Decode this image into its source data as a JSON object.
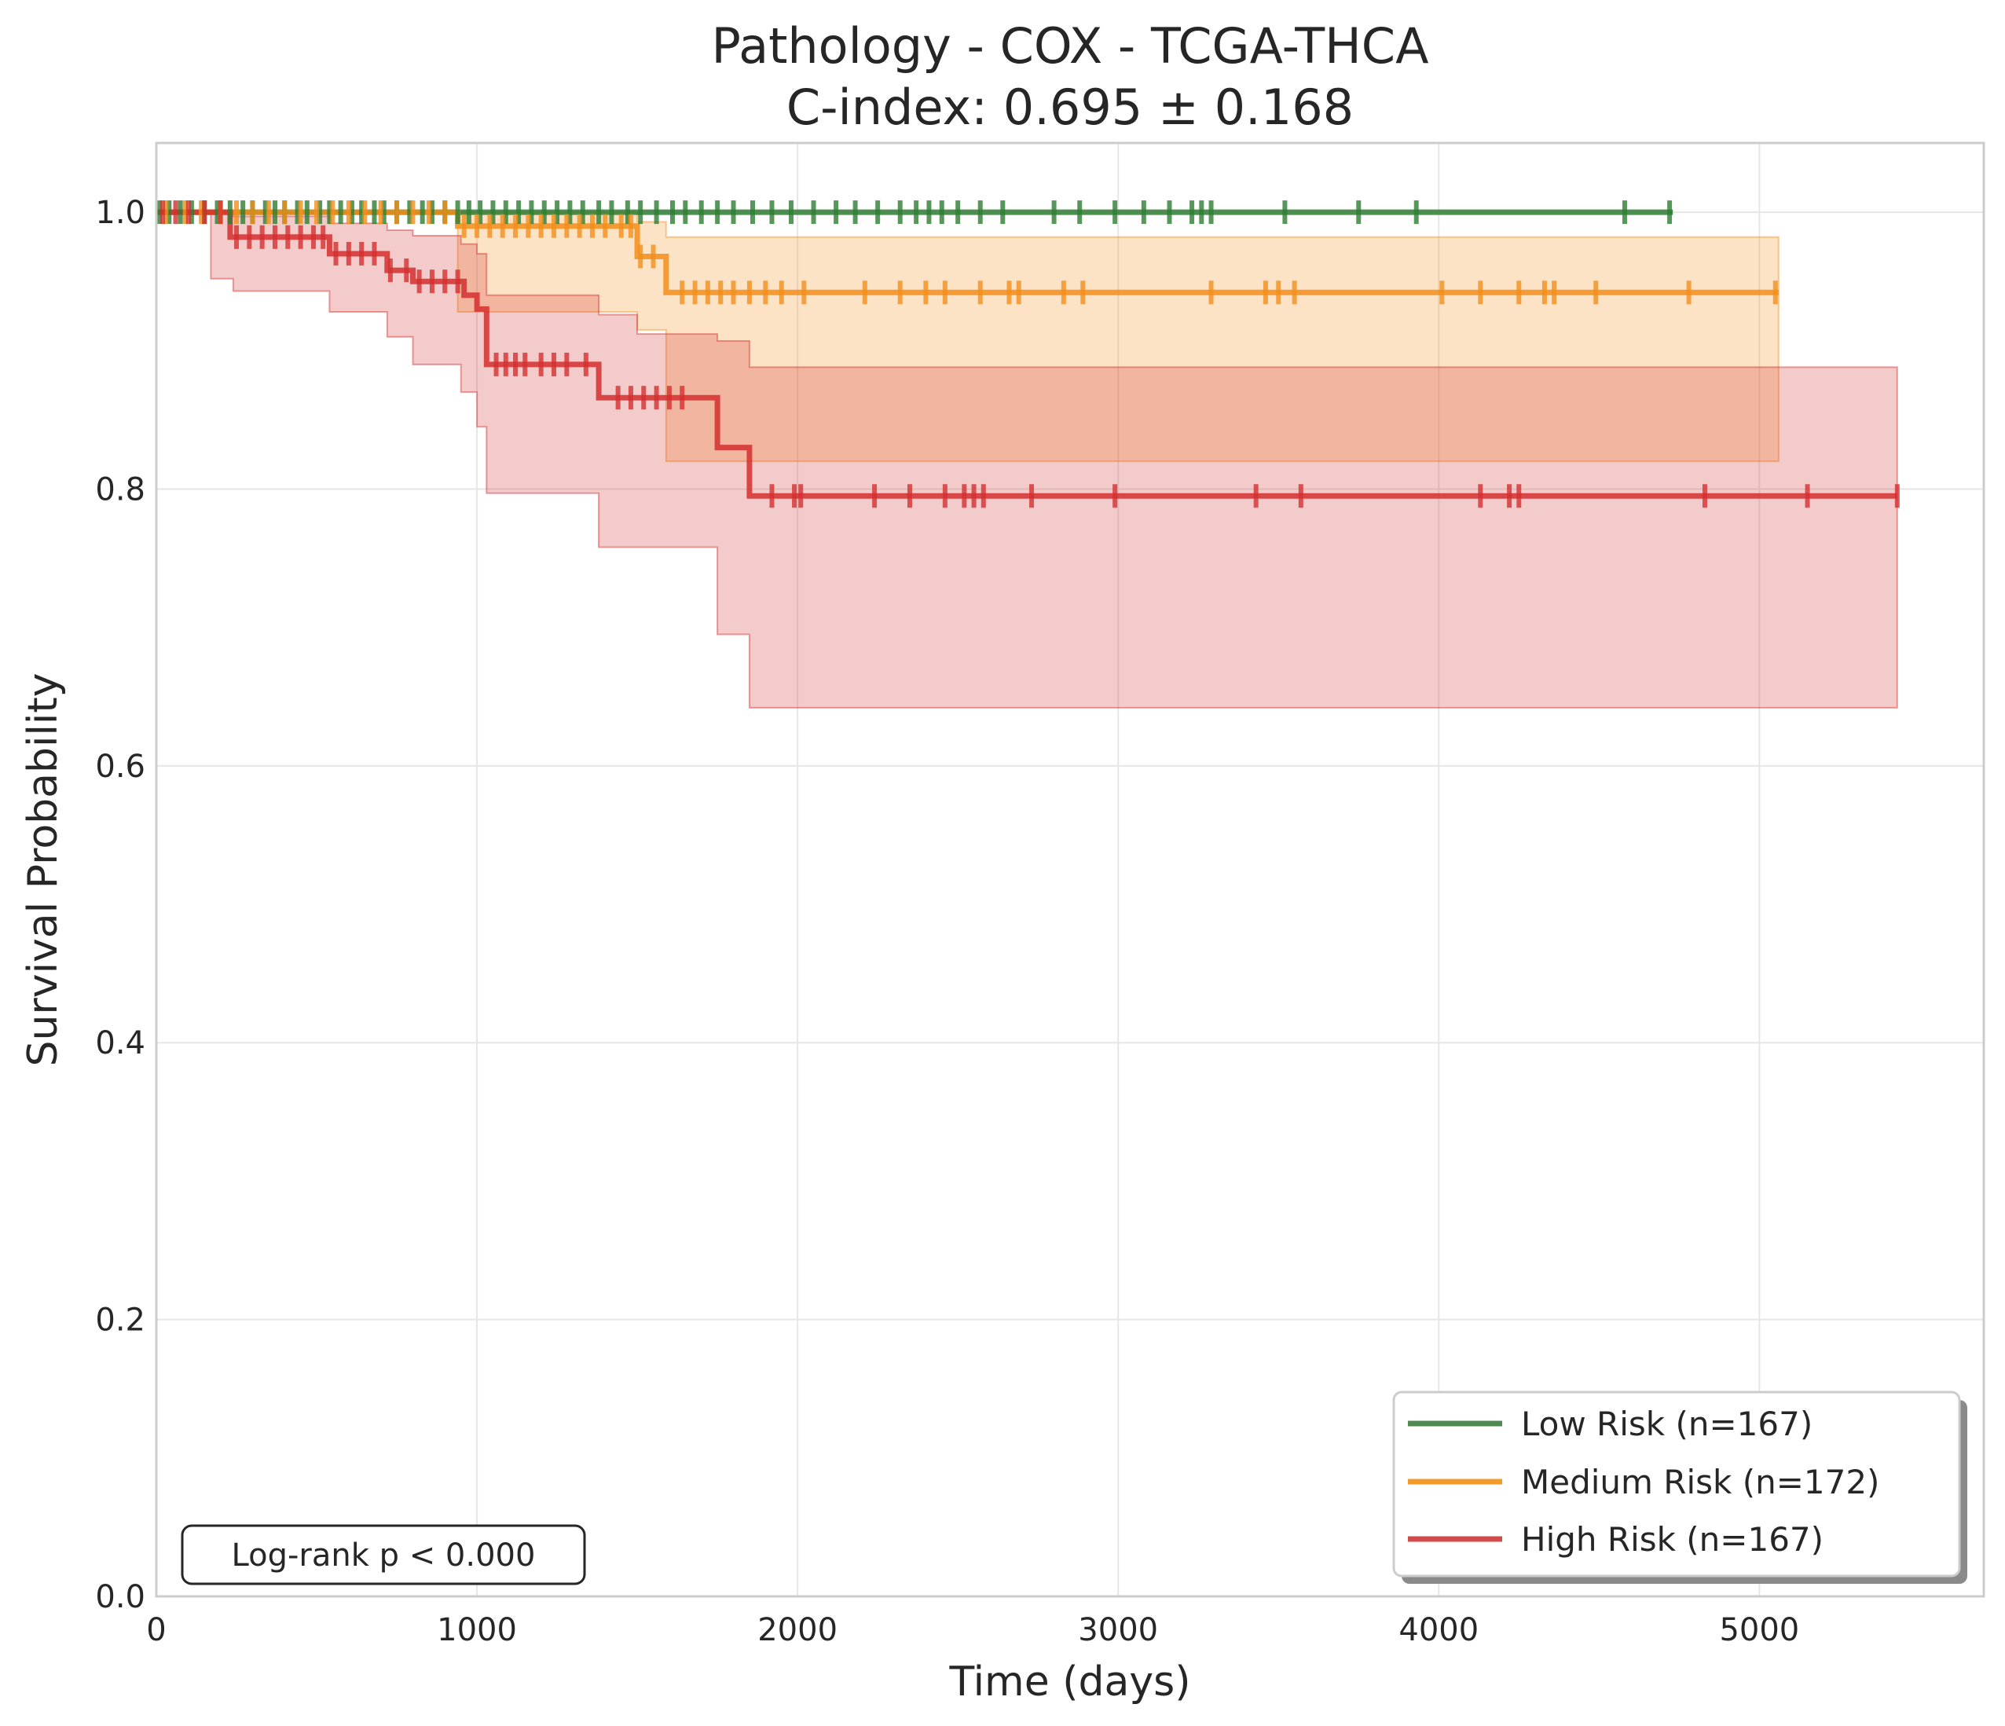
{
  "chart_data": {
    "type": "line",
    "title_line1": "Pathology - COX - TCGA-THCA",
    "title_line2": "C-index: 0.695 ± 0.168",
    "xlabel": "Time (days)",
    "ylabel": "Survival Probability",
    "xlim": [
      0,
      5700
    ],
    "ylim": [
      0,
      1.05
    ],
    "x_ticks": [
      0,
      1000,
      2000,
      3000,
      4000,
      5000
    ],
    "y_ticks": [
      0.0,
      0.2,
      0.4,
      0.6,
      0.8,
      1.0
    ],
    "y_tick_labels": [
      "0.0",
      "0.2",
      "0.4",
      "0.6",
      "0.8",
      "1.0"
    ],
    "grid": true,
    "legend_position": "lower-right",
    "annotation": "Log-rank p < 0.000",
    "series": [
      {
        "name": "Low Risk (n=167)",
        "color": "#2e7d32",
        "steps": [
          [
            0,
            1.0
          ],
          [
            4730,
            1.0
          ]
        ],
        "ci_steps": [],
        "censor_x": [
          10,
          40,
          75,
          110,
          150,
          190,
          230,
          270,
          300,
          340,
          370,
          400,
          440,
          470,
          510,
          540,
          575,
          610,
          640,
          680,
          710,
          750,
          790,
          830,
          860,
          900,
          940,
          975,
          1010,
          1050,
          1090,
          1130,
          1170,
          1210,
          1250,
          1290,
          1330,
          1380,
          1420,
          1470,
          1510,
          1560,
          1610,
          1650,
          1700,
          1750,
          1800,
          1860,
          1920,
          1980,
          2050,
          2120,
          2180,
          2250,
          2320,
          2370,
          2410,
          2450,
          2500,
          2570,
          2640,
          2800,
          2880,
          2990,
          3080,
          3160,
          3230,
          3260,
          3290,
          3520,
          3750,
          3930,
          4580,
          4720
        ]
      },
      {
        "name": "Medium Risk (n=172)",
        "color": "#f28e1c",
        "steps": [
          [
            0,
            1.0
          ],
          [
            940,
            1.0
          ],
          [
            940,
            0.99
          ],
          [
            1500,
            0.99
          ],
          [
            1500,
            0.968
          ],
          [
            1590,
            0.968
          ],
          [
            1590,
            0.942
          ],
          [
            5060,
            0.942
          ]
        ],
        "ci_steps": [
          [
            0,
            1.0,
            1.0
          ],
          [
            940,
            0.928,
            1.0
          ],
          [
            1500,
            0.915,
            0.993
          ],
          [
            1590,
            0.82,
            0.982
          ],
          [
            5060,
            0.82,
            0.982
          ]
        ],
        "censor_x": [
          30,
          90,
          140,
          200,
          250,
          300,
          350,
          400,
          450,
          500,
          550,
          600,
          650,
          700,
          750,
          800,
          850,
          900,
          960,
          1000,
          1040,
          1080,
          1120,
          1160,
          1200,
          1240,
          1280,
          1320,
          1360,
          1400,
          1450,
          1480,
          1510,
          1550,
          1640,
          1680,
          1720,
          1760,
          1800,
          1850,
          1900,
          1950,
          2020,
          2210,
          2320,
          2400,
          2460,
          2570,
          2660,
          2690,
          2830,
          2890,
          3290,
          3460,
          3500,
          3550,
          4010,
          4130,
          4250,
          4330,
          4360,
          4490,
          4780,
          5050
        ]
      },
      {
        "name": "High Risk (n=167)",
        "color": "#d32f2f",
        "steps": [
          [
            0,
            1.0
          ],
          [
            230,
            1.0
          ],
          [
            230,
            0.982
          ],
          [
            540,
            0.982
          ],
          [
            540,
            0.97
          ],
          [
            720,
            0.97
          ],
          [
            720,
            0.958
          ],
          [
            800,
            0.958
          ],
          [
            800,
            0.95
          ],
          [
            960,
            0.95
          ],
          [
            960,
            0.94
          ],
          [
            1000,
            0.94
          ],
          [
            1000,
            0.93
          ],
          [
            1030,
            0.93
          ],
          [
            1030,
            0.89
          ],
          [
            1380,
            0.89
          ],
          [
            1380,
            0.866
          ],
          [
            1750,
            0.866
          ],
          [
            1750,
            0.83
          ],
          [
            1850,
            0.83
          ],
          [
            1850,
            0.795
          ],
          [
            5430,
            0.795
          ]
        ],
        "ci_steps": [
          [
            0,
            1.0,
            1.0
          ],
          [
            170,
            0.952,
            1.0
          ],
          [
            240,
            0.943,
            0.997
          ],
          [
            540,
            0.928,
            0.992
          ],
          [
            720,
            0.91,
            0.987
          ],
          [
            800,
            0.89,
            0.983
          ],
          [
            950,
            0.87,
            0.977
          ],
          [
            1000,
            0.845,
            0.97
          ],
          [
            1030,
            0.797,
            0.94
          ],
          [
            1380,
            0.758,
            0.926
          ],
          [
            1500,
            0.758,
            0.912
          ],
          [
            1750,
            0.695,
            0.907
          ],
          [
            1850,
            0.642,
            0.888
          ],
          [
            5430,
            0.642,
            0.888
          ]
        ],
        "censor_x": [
          20,
          60,
          100,
          150,
          200,
          250,
          290,
          330,
          370,
          410,
          450,
          490,
          520,
          560,
          600,
          640,
          680,
          730,
          780,
          820,
          860,
          900,
          940,
          1060,
          1090,
          1120,
          1150,
          1200,
          1240,
          1280,
          1340,
          1440,
          1480,
          1520,
          1560,
          1600,
          1640,
          1920,
          1990,
          2010,
          2240,
          2350,
          2460,
          2520,
          2550,
          2580,
          2730,
          2990,
          3430,
          3570,
          4130,
          4220,
          4250,
          4830,
          5150,
          5430
        ]
      }
    ]
  }
}
